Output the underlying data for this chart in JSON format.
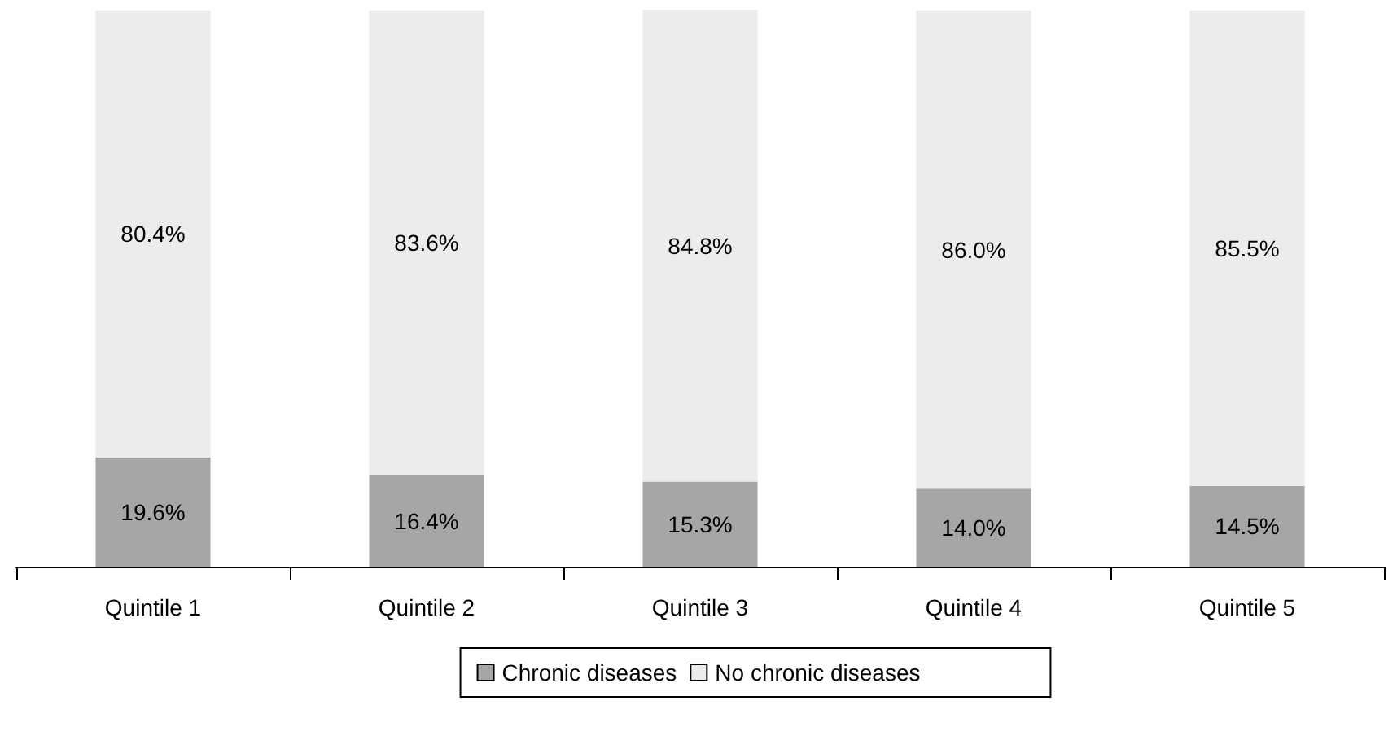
{
  "chart_data": {
    "type": "bar",
    "stacked": true,
    "categories": [
      "Quintile 1",
      "Quintile 2",
      "Quintile 3",
      "Quintile 4",
      "Quintile 5"
    ],
    "series": [
      {
        "name": "Chronic diseases",
        "color": "#a6a6a6",
        "values": [
          19.6,
          16.4,
          15.3,
          14.0,
          14.5
        ],
        "value_labels": [
          "19.6%",
          "16.4%",
          "15.3%",
          "14.0%",
          "14.5%"
        ]
      },
      {
        "name": "No chronic diseases",
        "color": "#ececec",
        "values": [
          80.4,
          83.6,
          84.8,
          86.0,
          85.5
        ],
        "value_labels": [
          "80.4%",
          "83.6%",
          "84.8%",
          "86.0%",
          "85.5%"
        ]
      }
    ],
    "legend": "bottom"
  }
}
